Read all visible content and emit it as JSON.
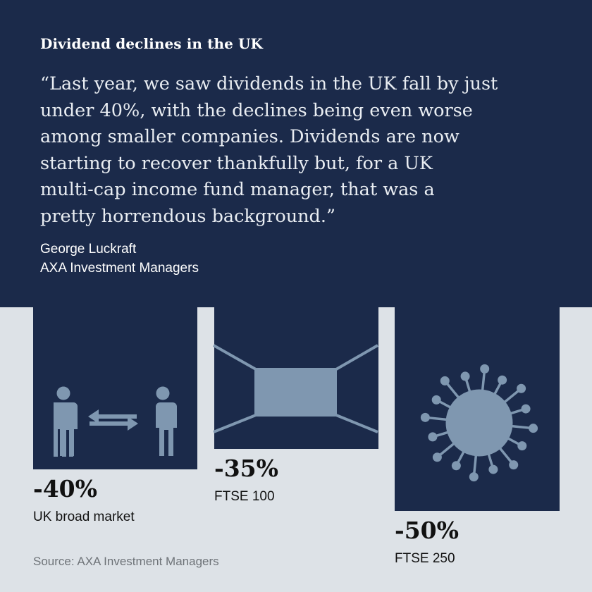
{
  "header": {
    "title": "Dividend declines in the UK",
    "quote_lines": [
      "“Last year, we saw dividends in the UK fall by just",
      "under 40%, with the declines being even worse",
      "among smaller companies. Dividends are now",
      "starting to recover thankfully but, for a UK",
      "multi-cap income fund manager, that was a",
      "pretty horrendous background.”"
    ],
    "author_name": "George Luckraft",
    "author_org": "AXA Investment Managers"
  },
  "source": "Source: AXA Investment Managers",
  "colors": {
    "navy": "#1b2a4a",
    "background": "#dde2e7",
    "icon": "#7f97b0",
    "text": "#111111"
  },
  "icons": [
    "social-distancing-icon",
    "empty-office-icon",
    "coronavirus-icon"
  ],
  "chart_data": {
    "type": "bar",
    "categories": [
      "UK broad market",
      "FTSE 100",
      "FTSE 250"
    ],
    "values": [
      -40,
      -35,
      -50
    ],
    "value_labels": [
      "-40%",
      "-35%",
      "-50%"
    ],
    "ylim": [
      -50,
      0
    ],
    "title": "Dividend declines in the UK",
    "xlabel": "",
    "ylabel": ""
  }
}
